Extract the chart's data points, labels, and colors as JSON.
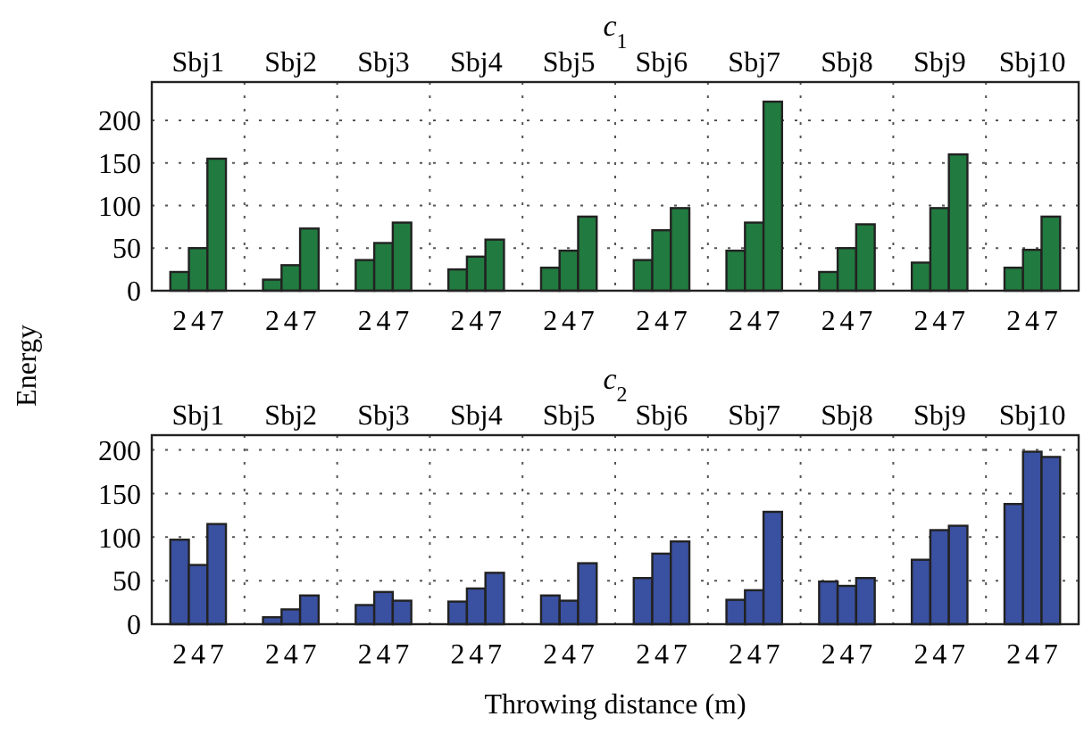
{
  "chart_data": [
    {
      "type": "bar",
      "title": "c$_{1}$",
      "ylabel": "Energy",
      "categories": [
        "2",
        "4",
        "7",
        "2",
        "4",
        "7",
        "2",
        "4",
        "7",
        "2",
        "4",
        "7",
        "2",
        "4",
        "7",
        "2",
        "4",
        "7",
        "2",
        "4",
        "7",
        "2",
        "4",
        "7",
        "2",
        "4",
        "7",
        "2",
        "4",
        "7"
      ],
      "series": [
        {
          "color": "#217a3f",
          "values": [
            22,
            50,
            155,
            13,
            30,
            73,
            36,
            56,
            80,
            25,
            40,
            60,
            27,
            47,
            87,
            36,
            71,
            97,
            47,
            80,
            222,
            22,
            50,
            78,
            33,
            97,
            160,
            27,
            48,
            87
          ]
        }
      ],
      "annotations": [
        "Sbj1",
        "Sbj2",
        "Sbj3",
        "Sbj4",
        "Sbj5",
        "Sbj6",
        "Sbj7",
        "Sbj8",
        "Sbj9",
        "Sbj10"
      ],
      "ylim": [
        0,
        245
      ],
      "yticks": [
        0,
        50,
        100,
        150,
        200
      ],
      "grid": true
    },
    {
      "type": "bar",
      "title": "c$_{2}$",
      "xlabel": "Throwing distance (m)",
      "categories": [
        "2",
        "4",
        "7",
        "2",
        "4",
        "7",
        "2",
        "4",
        "7",
        "2",
        "4",
        "7",
        "2",
        "4",
        "7",
        "2",
        "4",
        "7",
        "2",
        "4",
        "7",
        "2",
        "4",
        "7",
        "2",
        "4",
        "7",
        "2",
        "4",
        "7"
      ],
      "series": [
        {
          "color": "#3a50a0",
          "values": [
            97,
            68,
            115,
            8,
            17,
            33,
            22,
            37,
            27,
            26,
            41,
            59,
            33,
            27,
            70,
            53,
            81,
            95,
            28,
            39,
            129,
            49,
            44,
            53,
            74,
            108,
            113,
            138,
            198,
            192
          ]
        }
      ],
      "annotations": [
        "Sbj1",
        "Sbj2",
        "Sbj3",
        "Sbj4",
        "Sbj5",
        "Sbj6",
        "Sbj7",
        "Sbj8",
        "Sbj9",
        "Sbj10"
      ],
      "ylim": [
        0,
        217
      ],
      "yticks": [
        0,
        50,
        100,
        150,
        200
      ],
      "grid": true
    }
  ]
}
